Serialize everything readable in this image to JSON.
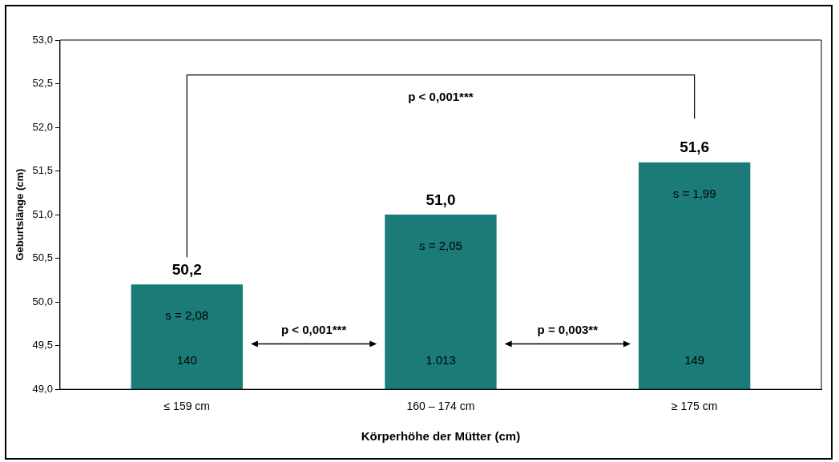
{
  "chart_data": {
    "type": "bar",
    "xlabel": "Körperhöhe der Mütter (cm)",
    "ylabel": "Geburtslänge (cm)",
    "categories": [
      "≤ 159 cm",
      "160 – 174 cm",
      "≥ 175 cm"
    ],
    "values": [
      50.2,
      51.0,
      51.6
    ],
    "color": "#1a7b78",
    "value_labels": [
      "50,2",
      "51,0",
      "51,6"
    ],
    "ylim": [
      49,
      53
    ],
    "yticks": [
      {
        "value": 49,
        "label": "49,0"
      },
      {
        "value": 49.5,
        "label": "49,5"
      },
      {
        "value": 50,
        "label": "50,0"
      },
      {
        "value": 50.5,
        "label": "50,5"
      },
      {
        "value": 51,
        "label": "51,0"
      },
      {
        "value": 51.5,
        "label": "51,5"
      },
      {
        "value": 52,
        "label": "52,0"
      },
      {
        "value": 52.5,
        "label": "52,5"
      },
      {
        "value": 53,
        "label": "53,0"
      }
    ],
    "grid": false,
    "legend": false,
    "annotations": [
      "p < 0,001***",
      "p = 0,003**",
      "p < 0,001***",
      "s = 2,08",
      "s = 2,05",
      "s = 1,99",
      "140",
      "1.013",
      "149"
    ]
  }
}
